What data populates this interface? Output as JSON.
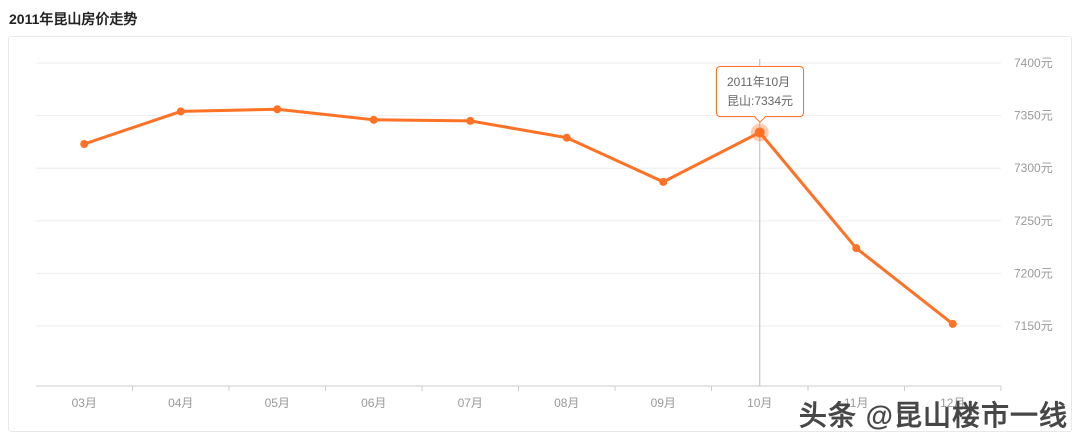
{
  "page_title": "2011年昆山房价走势",
  "watermark": "头条 @昆山楼市一线",
  "chart_data": {
    "type": "line",
    "title": "2011年昆山房价走势",
    "categories": [
      "03月",
      "04月",
      "05月",
      "06月",
      "07月",
      "08月",
      "09月",
      "10月",
      "11月",
      "12月"
    ],
    "series": [
      {
        "name": "昆山",
        "values": [
          7323,
          7354,
          7356,
          7346,
          7345,
          7329,
          7287,
          7334,
          7224,
          7152
        ]
      }
    ],
    "xlabel": "",
    "ylabel": "",
    "ylim": [
      7093,
      7400
    ],
    "y_ticks": [
      "7400元",
      "7350元",
      "7300元",
      "7250元",
      "7200元",
      "7150元"
    ],
    "y_tick_values": [
      7400,
      7350,
      7300,
      7250,
      7200,
      7150
    ],
    "grid": true,
    "legend": "none",
    "line_color": "#ff7124",
    "grid_color": "#eeeeee",
    "axis_color": "#cccccc",
    "label_color": "#999999",
    "tooltip": {
      "index": 7,
      "line1": "2011年10月",
      "line2": "昆山:7334元"
    }
  }
}
